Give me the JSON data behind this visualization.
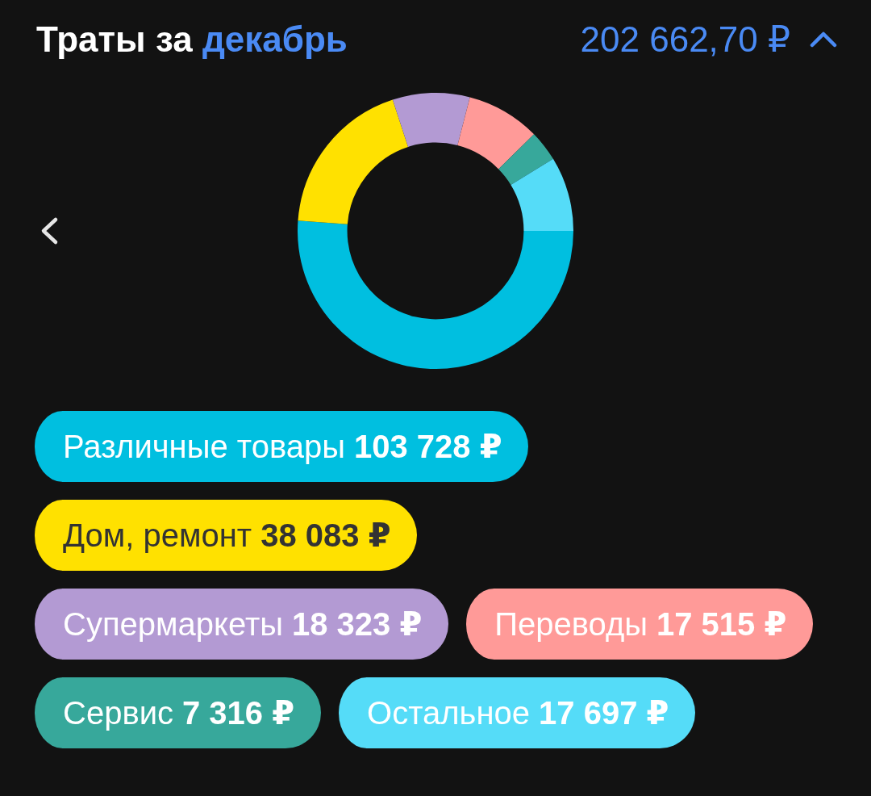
{
  "chart_data": {
    "type": "donut",
    "title": "Траты за декабрь",
    "annotations": [
      "202 662,70 ₽"
    ],
    "categories": [
      "Различные товары",
      "Дом, ремонт",
      "Супермаркеты",
      "Переводы",
      "Сервис",
      "Остальное"
    ],
    "values": [
      103728,
      38083,
      18323,
      17515,
      7316,
      17697
    ],
    "value_labels": [
      "103 728 ₽",
      "38 083 ₽",
      "18 323 ₽",
      "17 515 ₽",
      "7 316 ₽",
      "17 697 ₽"
    ],
    "colors": [
      "#00bfe0",
      "#ffe100",
      "#b39ad3",
      "#ff9a98",
      "#37a89b",
      "#55dcf8"
    ],
    "legend": "bottom"
  }
}
